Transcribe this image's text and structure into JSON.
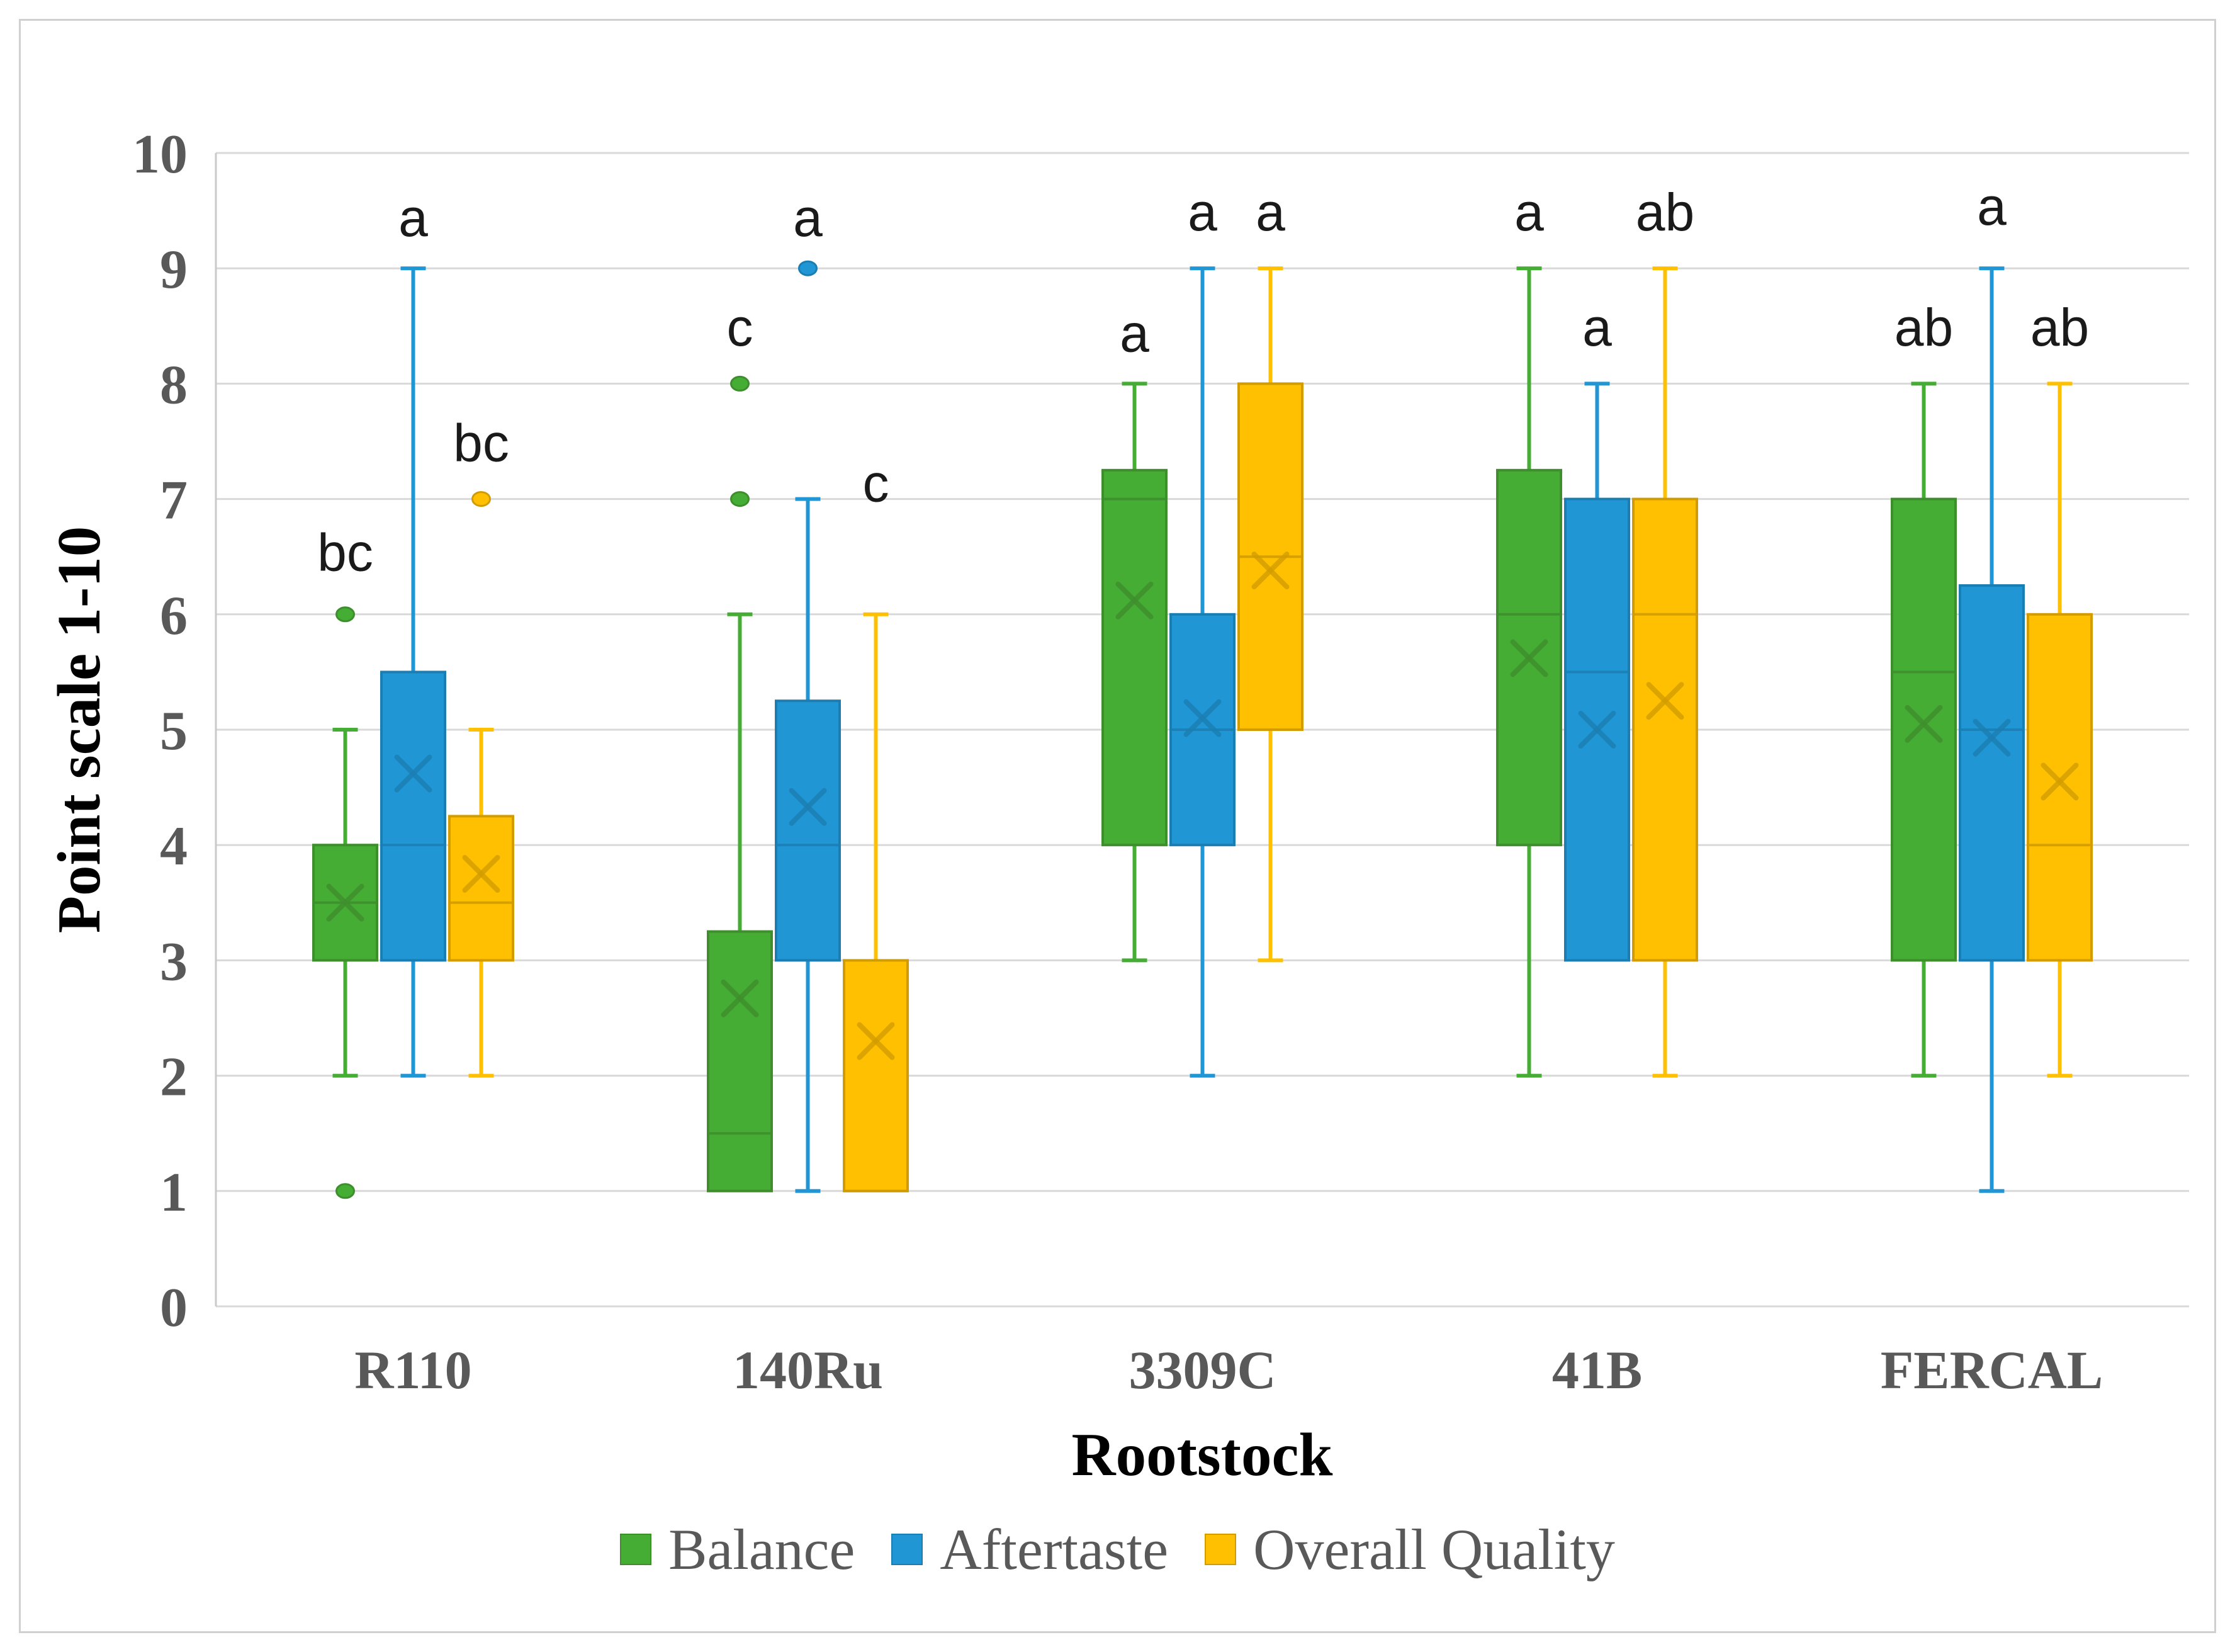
{
  "styles": {
    "background": "#FFFFFF",
    "frame_border": "#D0D0D0",
    "grid_color": "#D9D9D9",
    "axis_line_color": "#C9C9C9",
    "tick_text_color": "#595959",
    "title_text_color": "#000000",
    "sig_text_color": "#1A1A1A",
    "legend_text_color": "#595959"
  },
  "chart_data": {
    "type": "boxplot",
    "title": "",
    "xlabel": "Rootstock",
    "ylabel": "Point scale 1-10",
    "ylim": [
      0,
      10
    ],
    "ytick_step": 1,
    "grid": true,
    "legend_position": "bottom",
    "categories": [
      "R110",
      "140Ru",
      "3309C",
      "41B",
      "FERCAL"
    ],
    "series": [
      {
        "name": "Balance",
        "fill": "#45AC34",
        "line": "#3E8E2D",
        "data": [
          {
            "whisker_low": 2,
            "q1": 3,
            "median": 3.5,
            "q3": 4,
            "whisker_high": 5,
            "mean": 3.5,
            "outliers": [
              6,
              1
            ],
            "sig_label": "bc",
            "sig_label_y": 6.5
          },
          {
            "whisker_low": 1,
            "q1": 1,
            "median": 1.5,
            "q3": 3.25,
            "whisker_high": 6,
            "mean": 2.67,
            "outliers": [
              8,
              7
            ],
            "sig_label": "c",
            "sig_label_y": 8.45
          },
          {
            "whisker_low": 3,
            "q1": 4,
            "median": 7,
            "q3": 7.25,
            "whisker_high": 8,
            "mean": 6.12,
            "outliers": [],
            "sig_label": "a",
            "sig_label_y": 8.4
          },
          {
            "whisker_low": 2,
            "q1": 4,
            "median": 6,
            "q3": 7.25,
            "whisker_high": 9,
            "mean": 5.62,
            "outliers": [],
            "sig_label": "a",
            "sig_label_y": 9.45
          },
          {
            "whisker_low": 2,
            "q1": 3,
            "median": 5.5,
            "q3": 7,
            "whisker_high": 8,
            "mean": 5.05,
            "outliers": [],
            "sig_label": "ab",
            "sig_label_y": 8.45
          }
        ]
      },
      {
        "name": "Aftertaste",
        "fill": "#2196D5",
        "line": "#1B7EB2",
        "data": [
          {
            "whisker_low": 2,
            "q1": 3,
            "median": 4,
            "q3": 5.5,
            "whisker_high": 9,
            "mean": 4.62,
            "outliers": [],
            "sig_label": "a",
            "sig_label_y": 9.4
          },
          {
            "whisker_low": 1,
            "q1": 3,
            "median": 4,
            "q3": 5.25,
            "whisker_high": 7,
            "mean": 4.33,
            "outliers": [
              9
            ],
            "sig_label": "a",
            "sig_label_y": 9.4
          },
          {
            "whisker_low": 2,
            "q1": 4,
            "median": 5,
            "q3": 6,
            "whisker_high": 9,
            "mean": 5.1,
            "outliers": [],
            "sig_label": "a",
            "sig_label_y": 9.45
          },
          {
            "whisker_low": 3,
            "q1": 3,
            "median": 5.5,
            "q3": 7,
            "whisker_high": 8,
            "mean": 5.0,
            "outliers": [],
            "sig_label": "a",
            "sig_label_y": 8.45
          },
          {
            "whisker_low": 1,
            "q1": 3,
            "median": 5,
            "q3": 6.25,
            "whisker_high": 9,
            "mean": 4.93,
            "outliers": [],
            "sig_label": "a",
            "sig_label_y": 9.5
          }
        ]
      },
      {
        "name": "Overall Quality",
        "fill": "#FFC002",
        "line": "#D29C00",
        "data": [
          {
            "whisker_low": 2,
            "q1": 3,
            "median": 3.5,
            "q3": 4.25,
            "whisker_high": 5,
            "mean": 3.75,
            "outliers": [
              7
            ],
            "sig_label": "bc",
            "sig_label_y": 7.45
          },
          {
            "whisker_low": 1,
            "q1": 1,
            "median": 1,
            "q3": 3,
            "whisker_high": 6,
            "mean": 2.3,
            "outliers": [],
            "sig_label": "c",
            "sig_label_y": 7.1
          },
          {
            "whisker_low": 3,
            "q1": 5,
            "median": 6.5,
            "q3": 8,
            "whisker_high": 9,
            "mean": 6.38,
            "outliers": [],
            "sig_label": "a",
            "sig_label_y": 9.45
          },
          {
            "whisker_low": 2,
            "q1": 3,
            "median": 6,
            "q3": 7,
            "whisker_high": 9,
            "mean": 5.25,
            "outliers": [],
            "sig_label": "ab",
            "sig_label_y": 9.45
          },
          {
            "whisker_low": 2,
            "q1": 3,
            "median": 4,
            "q3": 6,
            "whisker_high": 8,
            "mean": 4.55,
            "outliers": [],
            "sig_label": "ab",
            "sig_label_y": 8.45
          }
        ]
      }
    ]
  }
}
